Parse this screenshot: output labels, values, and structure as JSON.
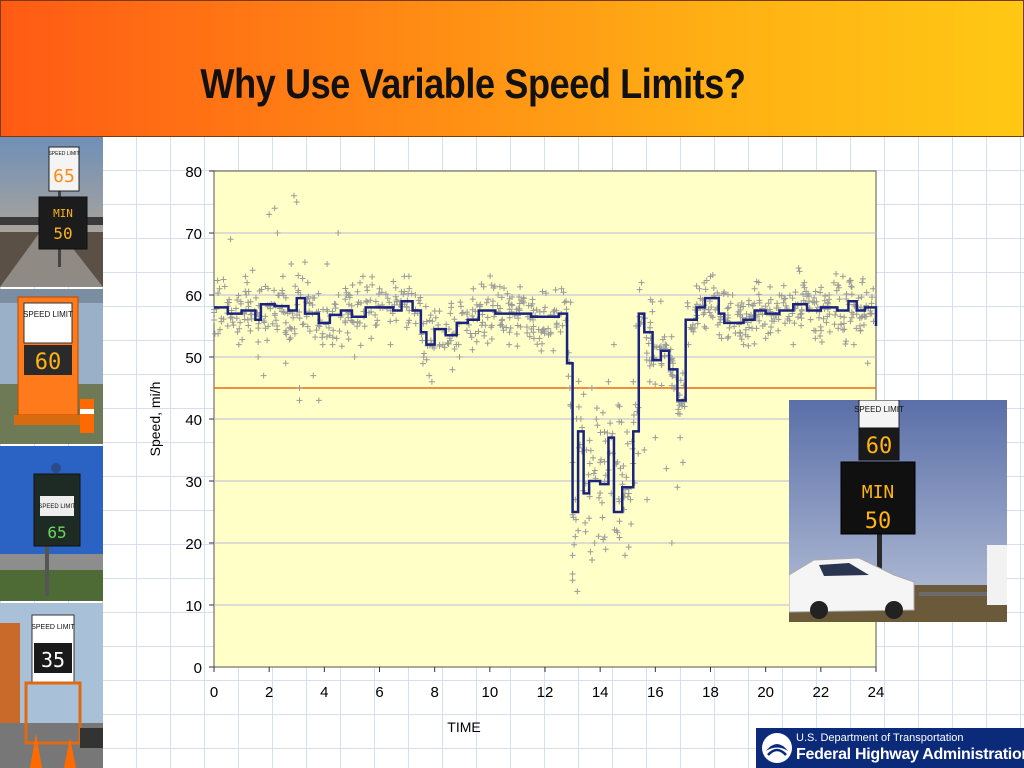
{
  "slide": {
    "title": "Why Use Variable Speed Limits?"
  },
  "signs": {
    "sign1_top": "SPEED LIMIT",
    "sign1_speed": "65",
    "sign1_min": "MIN",
    "sign1_min_speed": "50",
    "sign2_top": "SPEED LIMIT",
    "sign2_speed": "60",
    "sign3_top": "SPEED LIMIT",
    "sign3_speed": "65",
    "sign4_top": "SPEED LIMIT",
    "sign4_speed": "35",
    "overlay_top": "SPEED LIMIT",
    "overlay_speed": "60",
    "overlay_min": "MIN",
    "overlay_min_speed": "50"
  },
  "footer": {
    "agency_line1": "U.S. Department of Transportation",
    "agency_line2": "Federal Highway Administration"
  },
  "colors": {
    "header_start": "#ff5a14",
    "header_end": "#ffc814",
    "plot_bg": "#ffffc8",
    "mean_line": "#1a237e",
    "threshold_line": "#e86a10",
    "scatter": "#9a9a9a",
    "fhwa_blue": "#0b2a7a"
  },
  "chart_data": {
    "type": "scatter",
    "xlabel": "TIME",
    "ylabel": "Speed, mi/h",
    "xlim": [
      0,
      24
    ],
    "ylim": [
      0,
      80
    ],
    "x_ticks": [
      0,
      2,
      4,
      6,
      8,
      10,
      12,
      14,
      16,
      18,
      20,
      22,
      24
    ],
    "y_ticks": [
      0,
      10,
      20,
      30,
      40,
      50,
      60,
      70,
      80
    ],
    "grid": "horizontal",
    "reference_line_y": 45,
    "mean_speed_step": [
      [
        0,
        58
      ],
      [
        0.5,
        57
      ],
      [
        1.0,
        57.5
      ],
      [
        1.5,
        56
      ],
      [
        1.7,
        58.5
      ],
      [
        2.2,
        58.2
      ],
      [
        2.7,
        57.5
      ],
      [
        3.0,
        59.5
      ],
      [
        3.3,
        57
      ],
      [
        3.8,
        55.5
      ],
      [
        4.2,
        56.8
      ],
      [
        4.6,
        57.5
      ],
      [
        5.0,
        56.5
      ],
      [
        5.5,
        58
      ],
      [
        6.5,
        57.5
      ],
      [
        6.8,
        59
      ],
      [
        7.2,
        57.5
      ],
      [
        7.5,
        54
      ],
      [
        7.7,
        52
      ],
      [
        8.0,
        54.5
      ],
      [
        8.4,
        53.5
      ],
      [
        8.8,
        55.5
      ],
      [
        9.2,
        56
      ],
      [
        9.6,
        57.5
      ],
      [
        10.2,
        57
      ],
      [
        11.5,
        56.5
      ],
      [
        12.5,
        57
      ],
      [
        12.8,
        49
      ],
      [
        13.0,
        25
      ],
      [
        13.2,
        38
      ],
      [
        13.4,
        28
      ],
      [
        13.6,
        30
      ],
      [
        14.0,
        29.5
      ],
      [
        14.3,
        37
      ],
      [
        14.5,
        25
      ],
      [
        14.8,
        29
      ],
      [
        15.2,
        38
      ],
      [
        15.4,
        57
      ],
      [
        15.6,
        54
      ],
      [
        15.9,
        49.5
      ],
      [
        16.2,
        51
      ],
      [
        16.5,
        48
      ],
      [
        16.8,
        43
      ],
      [
        17.1,
        56
      ],
      [
        17.5,
        58
      ],
      [
        17.8,
        59.5
      ],
      [
        18.3,
        57
      ],
      [
        18.5,
        55.5
      ],
      [
        19.2,
        56
      ],
      [
        19.6,
        57.5
      ],
      [
        20.0,
        57
      ],
      [
        20.5,
        57.5
      ],
      [
        21.0,
        58.5
      ],
      [
        21.5,
        57.5
      ],
      [
        22.0,
        58
      ],
      [
        22.6,
        57.5
      ],
      [
        23.0,
        59
      ],
      [
        23.3,
        57.5
      ],
      [
        23.6,
        58
      ],
      [
        24.0,
        55
      ]
    ],
    "scatter_points": [
      [
        0.2,
        61
      ],
      [
        0.5,
        55
      ],
      [
        0.6,
        69
      ],
      [
        0.9,
        52
      ],
      [
        1.2,
        62
      ],
      [
        1.4,
        64
      ],
      [
        1.6,
        50
      ],
      [
        1.8,
        47
      ],
      [
        2.0,
        73
      ],
      [
        2.2,
        74
      ],
      [
        2.3,
        70
      ],
      [
        2.5,
        63
      ],
      [
        2.6,
        49
      ],
      [
        2.8,
        65
      ],
      [
        2.9,
        76
      ],
      [
        3.0,
        75
      ],
      [
        3.1,
        45
      ],
      [
        3.1,
        43
      ],
      [
        3.4,
        62
      ],
      [
        3.6,
        47
      ],
      [
        3.8,
        43
      ],
      [
        4.1,
        65
      ],
      [
        4.3,
        52
      ],
      [
        4.5,
        70
      ],
      [
        4.8,
        60
      ],
      [
        5.1,
        50
      ],
      [
        5.4,
        63
      ],
      [
        5.7,
        53
      ],
      [
        6.0,
        61
      ],
      [
        6.4,
        52
      ],
      [
        6.9,
        63
      ],
      [
        7.3,
        60
      ],
      [
        7.6,
        50
      ],
      [
        7.8,
        47
      ],
      [
        7.9,
        46
      ],
      [
        8.3,
        52
      ],
      [
        8.6,
        58
      ],
      [
        8.9,
        50
      ],
      [
        9.4,
        61
      ],
      [
        9.8,
        54
      ],
      [
        10.3,
        60
      ],
      [
        10.7,
        52
      ],
      [
        11.2,
        59
      ],
      [
        11.6,
        53
      ],
      [
        12.0,
        58
      ],
      [
        12.3,
        51
      ],
      [
        12.6,
        61
      ],
      [
        12.9,
        45
      ],
      [
        13.0,
        33
      ],
      [
        13.0,
        18
      ],
      [
        13.0,
        15
      ],
      [
        13.0,
        14
      ],
      [
        13.1,
        27
      ],
      [
        13.2,
        22
      ],
      [
        13.3,
        40
      ],
      [
        13.4,
        44
      ],
      [
        13.5,
        35
      ],
      [
        13.6,
        24
      ],
      [
        13.7,
        45
      ],
      [
        13.8,
        20
      ],
      [
        13.9,
        39
      ],
      [
        14.0,
        33
      ],
      [
        14.1,
        41
      ],
      [
        14.2,
        19
      ],
      [
        14.3,
        46
      ],
      [
        14.4,
        28
      ],
      [
        14.5,
        52
      ],
      [
        14.6,
        22
      ],
      [
        14.7,
        42
      ],
      [
        14.8,
        31
      ],
      [
        14.9,
        18
      ],
      [
        15.0,
        36
      ],
      [
        15.1,
        27
      ],
      [
        15.2,
        46
      ],
      [
        15.3,
        55
      ],
      [
        15.5,
        62
      ],
      [
        15.6,
        35
      ],
      [
        15.7,
        27
      ],
      [
        15.8,
        46
      ],
      [
        16.0,
        37
      ],
      [
        16.2,
        59
      ],
      [
        16.4,
        32
      ],
      [
        16.6,
        20
      ],
      [
        16.8,
        29
      ],
      [
        16.9,
        37
      ],
      [
        17.0,
        33
      ],
      [
        17.2,
        52
      ],
      [
        17.6,
        61
      ],
      [
        18.0,
        63
      ],
      [
        18.4,
        53
      ],
      [
        18.8,
        60
      ],
      [
        19.2,
        52
      ],
      [
        19.6,
        61
      ],
      [
        20.0,
        53
      ],
      [
        20.5,
        60
      ],
      [
        21.0,
        52
      ],
      [
        21.4,
        62
      ],
      [
        21.8,
        53
      ],
      [
        22.3,
        60
      ],
      [
        22.8,
        63
      ],
      [
        23.2,
        52
      ],
      [
        23.5,
        62
      ],
      [
        23.7,
        49
      ],
      [
        23.9,
        61
      ]
    ]
  }
}
